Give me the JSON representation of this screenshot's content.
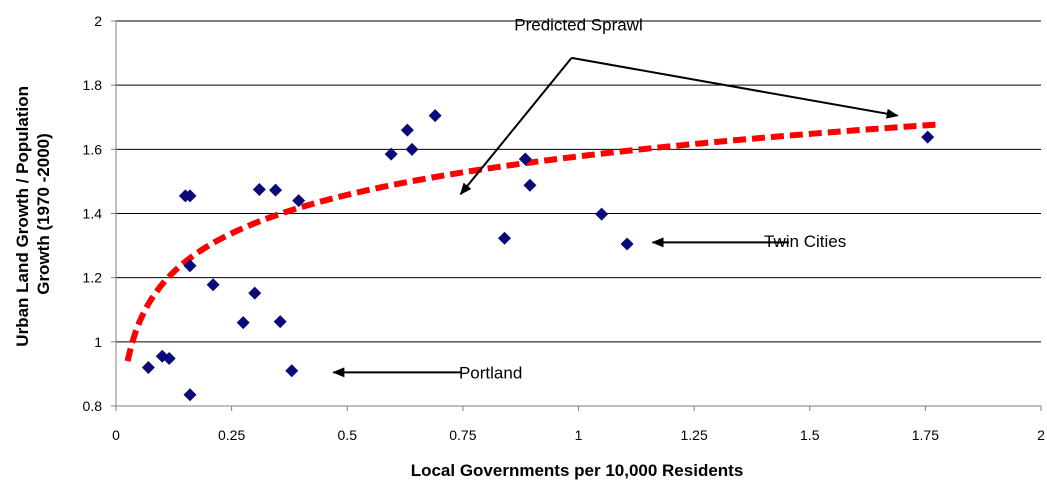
{
  "chart_data": {
    "type": "scatter",
    "title": "",
    "xlabel": "Local Governments per 10,000 Residents",
    "ylabel_lines": [
      "Urban Land Growth / Population",
      "Growth (1970 -2000)"
    ],
    "xlim": [
      0,
      2
    ],
    "ylim": [
      0.8,
      2
    ],
    "x_ticks": [
      0,
      0.25,
      0.5,
      0.75,
      1,
      1.25,
      1.5,
      1.75,
      2
    ],
    "x_tick_labels": [
      "0",
      "0.25",
      "0.5",
      "0.75",
      "1",
      "1.25",
      "1.5",
      "1.75",
      "2"
    ],
    "y_ticks": [
      0.8,
      1,
      1.2,
      1.4,
      1.6,
      1.8,
      2
    ],
    "y_tick_labels": [
      "0.8",
      "1",
      "1.2",
      "1.4",
      "1.6",
      "1.8",
      "2"
    ],
    "grid": "horizontal",
    "marker_color": "#0a0a78",
    "trend_color": "#ff0000",
    "points": [
      {
        "x": 0.07,
        "y": 0.92
      },
      {
        "x": 0.1,
        "y": 0.955
      },
      {
        "x": 0.115,
        "y": 0.948
      },
      {
        "x": 0.15,
        "y": 1.455
      },
      {
        "x": 0.16,
        "y": 1.455
      },
      {
        "x": 0.16,
        "y": 1.237
      },
      {
        "x": 0.16,
        "y": 0.835
      },
      {
        "x": 0.21,
        "y": 1.178
      },
      {
        "x": 0.275,
        "y": 1.06
      },
      {
        "x": 0.3,
        "y": 1.152
      },
      {
        "x": 0.31,
        "y": 1.475
      },
      {
        "x": 0.345,
        "y": 1.473
      },
      {
        "x": 0.355,
        "y": 1.063
      },
      {
        "x": 0.38,
        "y": 0.91
      },
      {
        "x": 0.395,
        "y": 1.44
      },
      {
        "x": 0.595,
        "y": 1.585
      },
      {
        "x": 0.63,
        "y": 1.66
      },
      {
        "x": 0.64,
        "y": 1.6
      },
      {
        "x": 0.69,
        "y": 1.705
      },
      {
        "x": 0.84,
        "y": 1.323
      },
      {
        "x": 0.885,
        "y": 1.57
      },
      {
        "x": 0.895,
        "y": 1.488
      },
      {
        "x": 1.05,
        "y": 1.398
      },
      {
        "x": 1.105,
        "y": 1.305
      },
      {
        "x": 1.755,
        "y": 1.638
      }
    ],
    "trend": {
      "type": "logarithmic",
      "a": 1.578,
      "b": 0.173,
      "x_range": [
        0.025,
        1.775
      ]
    },
    "annotations": [
      {
        "text": "Predicted Sprawl",
        "anchor_x": 1.0,
        "anchor_y": 1.97,
        "arrows": [
          {
            "from_x": 0.985,
            "from_y": 1.885,
            "to_x": 0.745,
            "to_y": 1.46
          },
          {
            "from_x": 0.985,
            "from_y": 1.885,
            "to_x": 1.69,
            "to_y": 1.705
          }
        ]
      },
      {
        "text": "Twin Cities",
        "anchor_x": 1.49,
        "anchor_y": 1.295,
        "arrows": [
          {
            "from_x": 1.455,
            "from_y": 1.31,
            "to_x": 1.16,
            "to_y": 1.31
          }
        ]
      },
      {
        "text": "Portland",
        "anchor_x": 0.81,
        "anchor_y": 0.885,
        "arrows": [
          {
            "from_x": 0.745,
            "from_y": 0.905,
            "to_x": 0.47,
            "to_y": 0.905
          }
        ]
      }
    ]
  }
}
